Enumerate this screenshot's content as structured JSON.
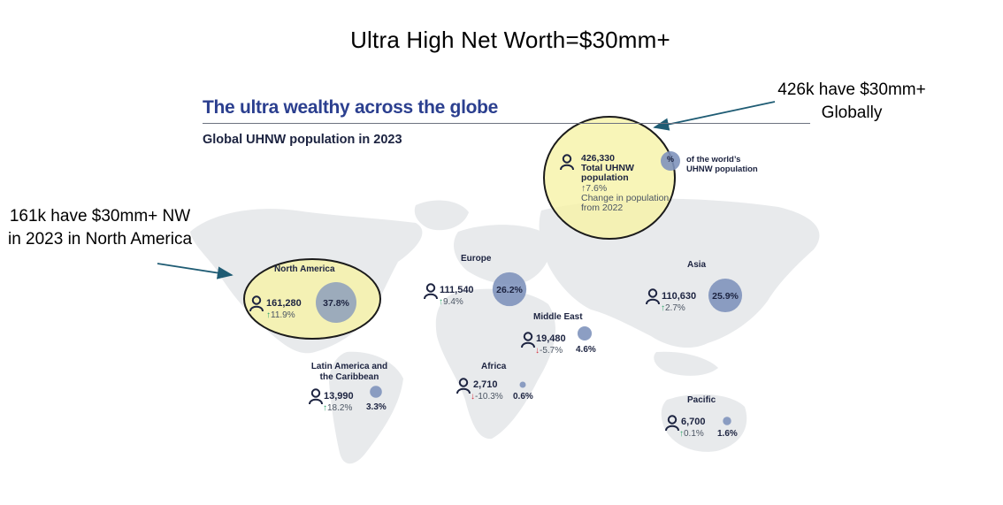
{
  "page_title": "Ultra High Net Worth=$30mm+",
  "map": {
    "title": "The ultra wealthy across the globe",
    "subtitle": "Global UHNW population in 2023"
  },
  "annotations": {
    "global": "426k have $30mm+ Globally",
    "north_america": "161k have $30mm+ NW in 2023 in North America"
  },
  "global_summary": {
    "total": "426,330",
    "total_label_1": "Total UHNW",
    "total_label_2": "population",
    "change": "↑7.6%",
    "change_label_1": "Change in population",
    "change_label_2": "from 2022",
    "share_symbol": "%",
    "share_label_1": "of the world’s",
    "share_label_2": "UHNW population"
  },
  "regions": [
    {
      "id": "north_america",
      "name": "North America",
      "count": "161,280",
      "change_arrow": "↑",
      "change_value": "11.9%",
      "direction": "up",
      "share": "37.8%",
      "share_pct": 37.8
    },
    {
      "id": "europe",
      "name": "Europe",
      "count": "111,540",
      "change_arrow": "↑",
      "change_value": "9.4%",
      "direction": "up",
      "share": "26.2%",
      "share_pct": 26.2
    },
    {
      "id": "asia",
      "name": "Asia",
      "count": "110,630",
      "change_arrow": "↑",
      "change_value": "2.7%",
      "direction": "up",
      "share": "25.9%",
      "share_pct": 25.9
    },
    {
      "id": "middle_east",
      "name": "Middle East",
      "count": "19,480",
      "change_arrow": "↓",
      "change_value": "-5.7%",
      "direction": "down",
      "share": "4.6%",
      "share_pct": 4.6
    },
    {
      "id": "latin_america",
      "name_1": "Latin America and",
      "name_2": "the Caribbean",
      "count": "13,990",
      "change_arrow": "↑",
      "change_value": "18.2%",
      "direction": "up",
      "share": "3.3%",
      "share_pct": 3.3
    },
    {
      "id": "africa",
      "name": "Africa",
      "count": "2,710",
      "change_arrow": "↓",
      "change_value": "-10.3%",
      "direction": "down",
      "share": "0.6%",
      "share_pct": 0.6
    },
    {
      "id": "pacific",
      "name": "Pacific",
      "count": "6,700",
      "change_arrow": "↑",
      "change_value": "0.1%",
      "direction": "up",
      "share": "1.6%",
      "share_pct": 1.6
    }
  ],
  "colors": {
    "bubble": "#7f93bd",
    "map_land": "#e8eaec",
    "highlight": "#f6f3a6",
    "up": "#2fa36b",
    "down": "#d62d3a",
    "title_blue": "#2b3f8f",
    "arrow": "#1f5c74"
  }
}
